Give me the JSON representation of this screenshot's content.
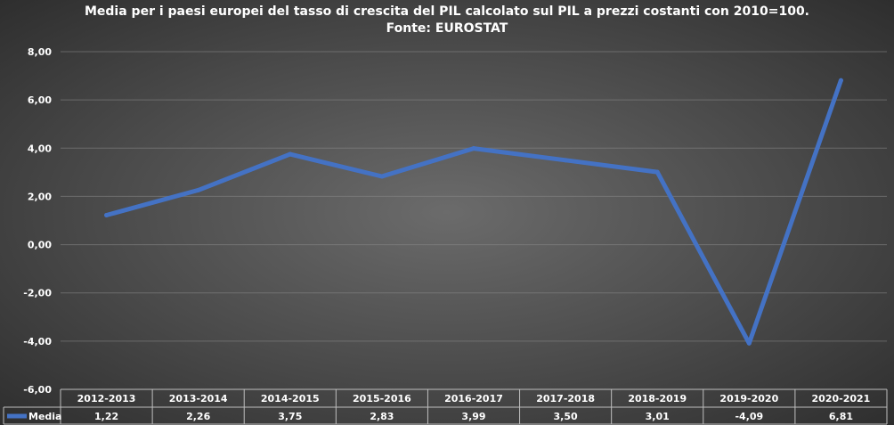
{
  "chart_data": {
    "type": "line",
    "title": "Media per i paesi europei del tasso di crescita del PIL calcolato sul PIL a prezzi costanti con 2010=100.",
    "subtitle": "Fonte: EUROSTAT",
    "categories": [
      "2012-2013",
      "2013-2014",
      "2014-2015",
      "2015-2016",
      "2016-2017",
      "2017-2018",
      "2018-2019",
      "2019-2020",
      "2020-2021"
    ],
    "series": [
      {
        "name": "Media",
        "values": [
          1.22,
          2.26,
          3.75,
          2.83,
          3.99,
          3.5,
          3.01,
          -4.09,
          6.81
        ],
        "labels": [
          "1,22",
          "2,26",
          "3,75",
          "2,83",
          "3,99",
          "3,50",
          "3,01",
          "-4,09",
          "6,81"
        ],
        "color": "#4472c4"
      }
    ],
    "ylim": [
      -6,
      8
    ],
    "yticks": [
      -6,
      -4,
      -2,
      0,
      2,
      4,
      6,
      8
    ],
    "ytick_labels": [
      "-6,00",
      "-4,00",
      "-2,00",
      "0,00",
      "2,00",
      "4,00",
      "6,00",
      "8,00"
    ],
    "grid": true,
    "data_table": true,
    "legend": "in data table"
  }
}
